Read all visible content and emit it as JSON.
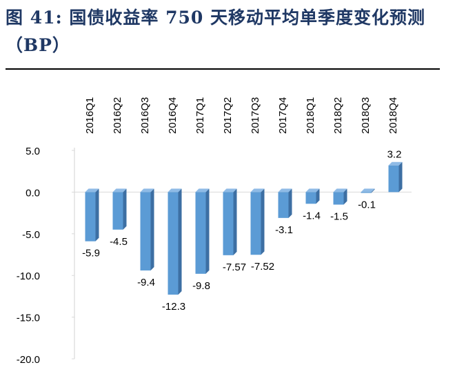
{
  "title": "图 41: 国债收益率 750 天移动平均单季度变化预测（BP）",
  "colors": {
    "title": "#1f3864",
    "bar_front": "#5b9bd5",
    "bar_side": "#3d6fa3",
    "bar_top": "#8fbbe6",
    "axis": "#d9d9d9",
    "text": "#000000"
  },
  "chart_data": {
    "type": "bar",
    "style": "3d-column",
    "categories": [
      "2016Q1",
      "2016Q2",
      "2016Q3",
      "2016Q4",
      "2017Q1",
      "2017Q2",
      "2017Q3",
      "2017Q4",
      "2018Q1",
      "2018Q2",
      "2018Q3",
      "2018Q4"
    ],
    "values": [
      -5.9,
      -4.5,
      -9.4,
      -12.3,
      -9.8,
      -7.57,
      -7.52,
      -3.1,
      -1.4,
      -1.5,
      -0.1,
      3.2
    ],
    "data_labels": [
      "-5.9",
      "-4.5",
      "-9.4",
      "-12.3",
      "-9.8",
      "-7.57",
      "-7.52",
      "-3.1",
      "-1.4",
      "-1.5",
      "-0.1",
      "3.2"
    ],
    "ylim": [
      -20,
      5
    ],
    "yticks": [
      5,
      0,
      -5,
      -10,
      -15,
      -20
    ],
    "ytick_labels": [
      "5.0",
      "0.0",
      "-5.0",
      "-10.0",
      "-15.0",
      "-20.0"
    ],
    "category_axis_position": "top",
    "category_label_rotation": "vertical",
    "grid": false,
    "legend": false
  }
}
